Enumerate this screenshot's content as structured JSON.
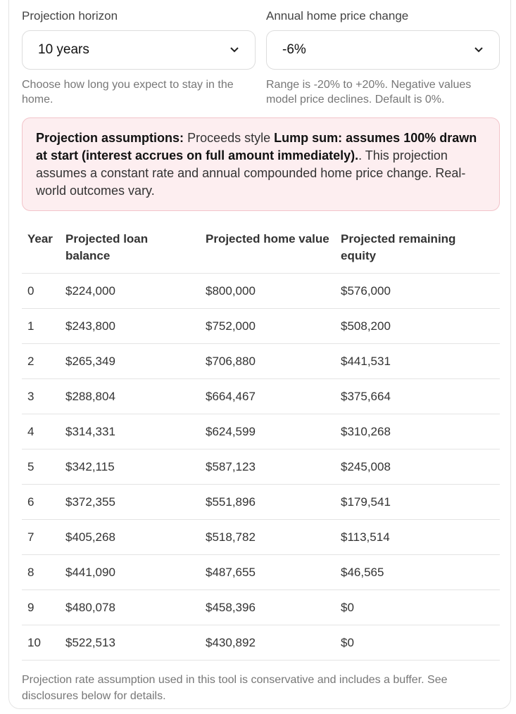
{
  "controls": [
    {
      "label": "Projection horizon",
      "value": "10 years",
      "help": "Choose how long you expect to stay in the home."
    },
    {
      "label": "Annual home price change",
      "value": "-6%",
      "help": "Range is -20% to +20%. Negative values model price declines. Default is 0%."
    }
  ],
  "notice": {
    "label": "Projection assumptions:",
    "text1": "Proceeds style",
    "emphasis": "Lump sum: assumes 100% drawn at start (interest accrues on full amount immediately).",
    "text2": ". This projection assumes a constant rate and annual compounded home price change. Real-world outcomes vary."
  },
  "table": {
    "headers": [
      "Year",
      "Projected loan balance",
      "Projected home value",
      "Projected remaining equity"
    ],
    "rows": [
      [
        "0",
        "$224,000",
        "$800,000",
        "$576,000"
      ],
      [
        "1",
        "$243,800",
        "$752,000",
        "$508,200"
      ],
      [
        "2",
        "$265,349",
        "$706,880",
        "$441,531"
      ],
      [
        "3",
        "$288,804",
        "$664,467",
        "$375,664"
      ],
      [
        "4",
        "$314,331",
        "$624,599",
        "$310,268"
      ],
      [
        "5",
        "$342,115",
        "$587,123",
        "$245,008"
      ],
      [
        "6",
        "$372,355",
        "$551,896",
        "$179,541"
      ],
      [
        "7",
        "$405,268",
        "$518,782",
        "$113,514"
      ],
      [
        "8",
        "$441,090",
        "$487,655",
        "$46,565"
      ],
      [
        "9",
        "$480,078",
        "$458,396",
        "$0"
      ],
      [
        "10",
        "$522,513",
        "$430,892",
        "$0"
      ]
    ]
  },
  "footnote": "Projection rate assumption used in this tool is conservative and includes a buffer. See disclosures below for details."
}
